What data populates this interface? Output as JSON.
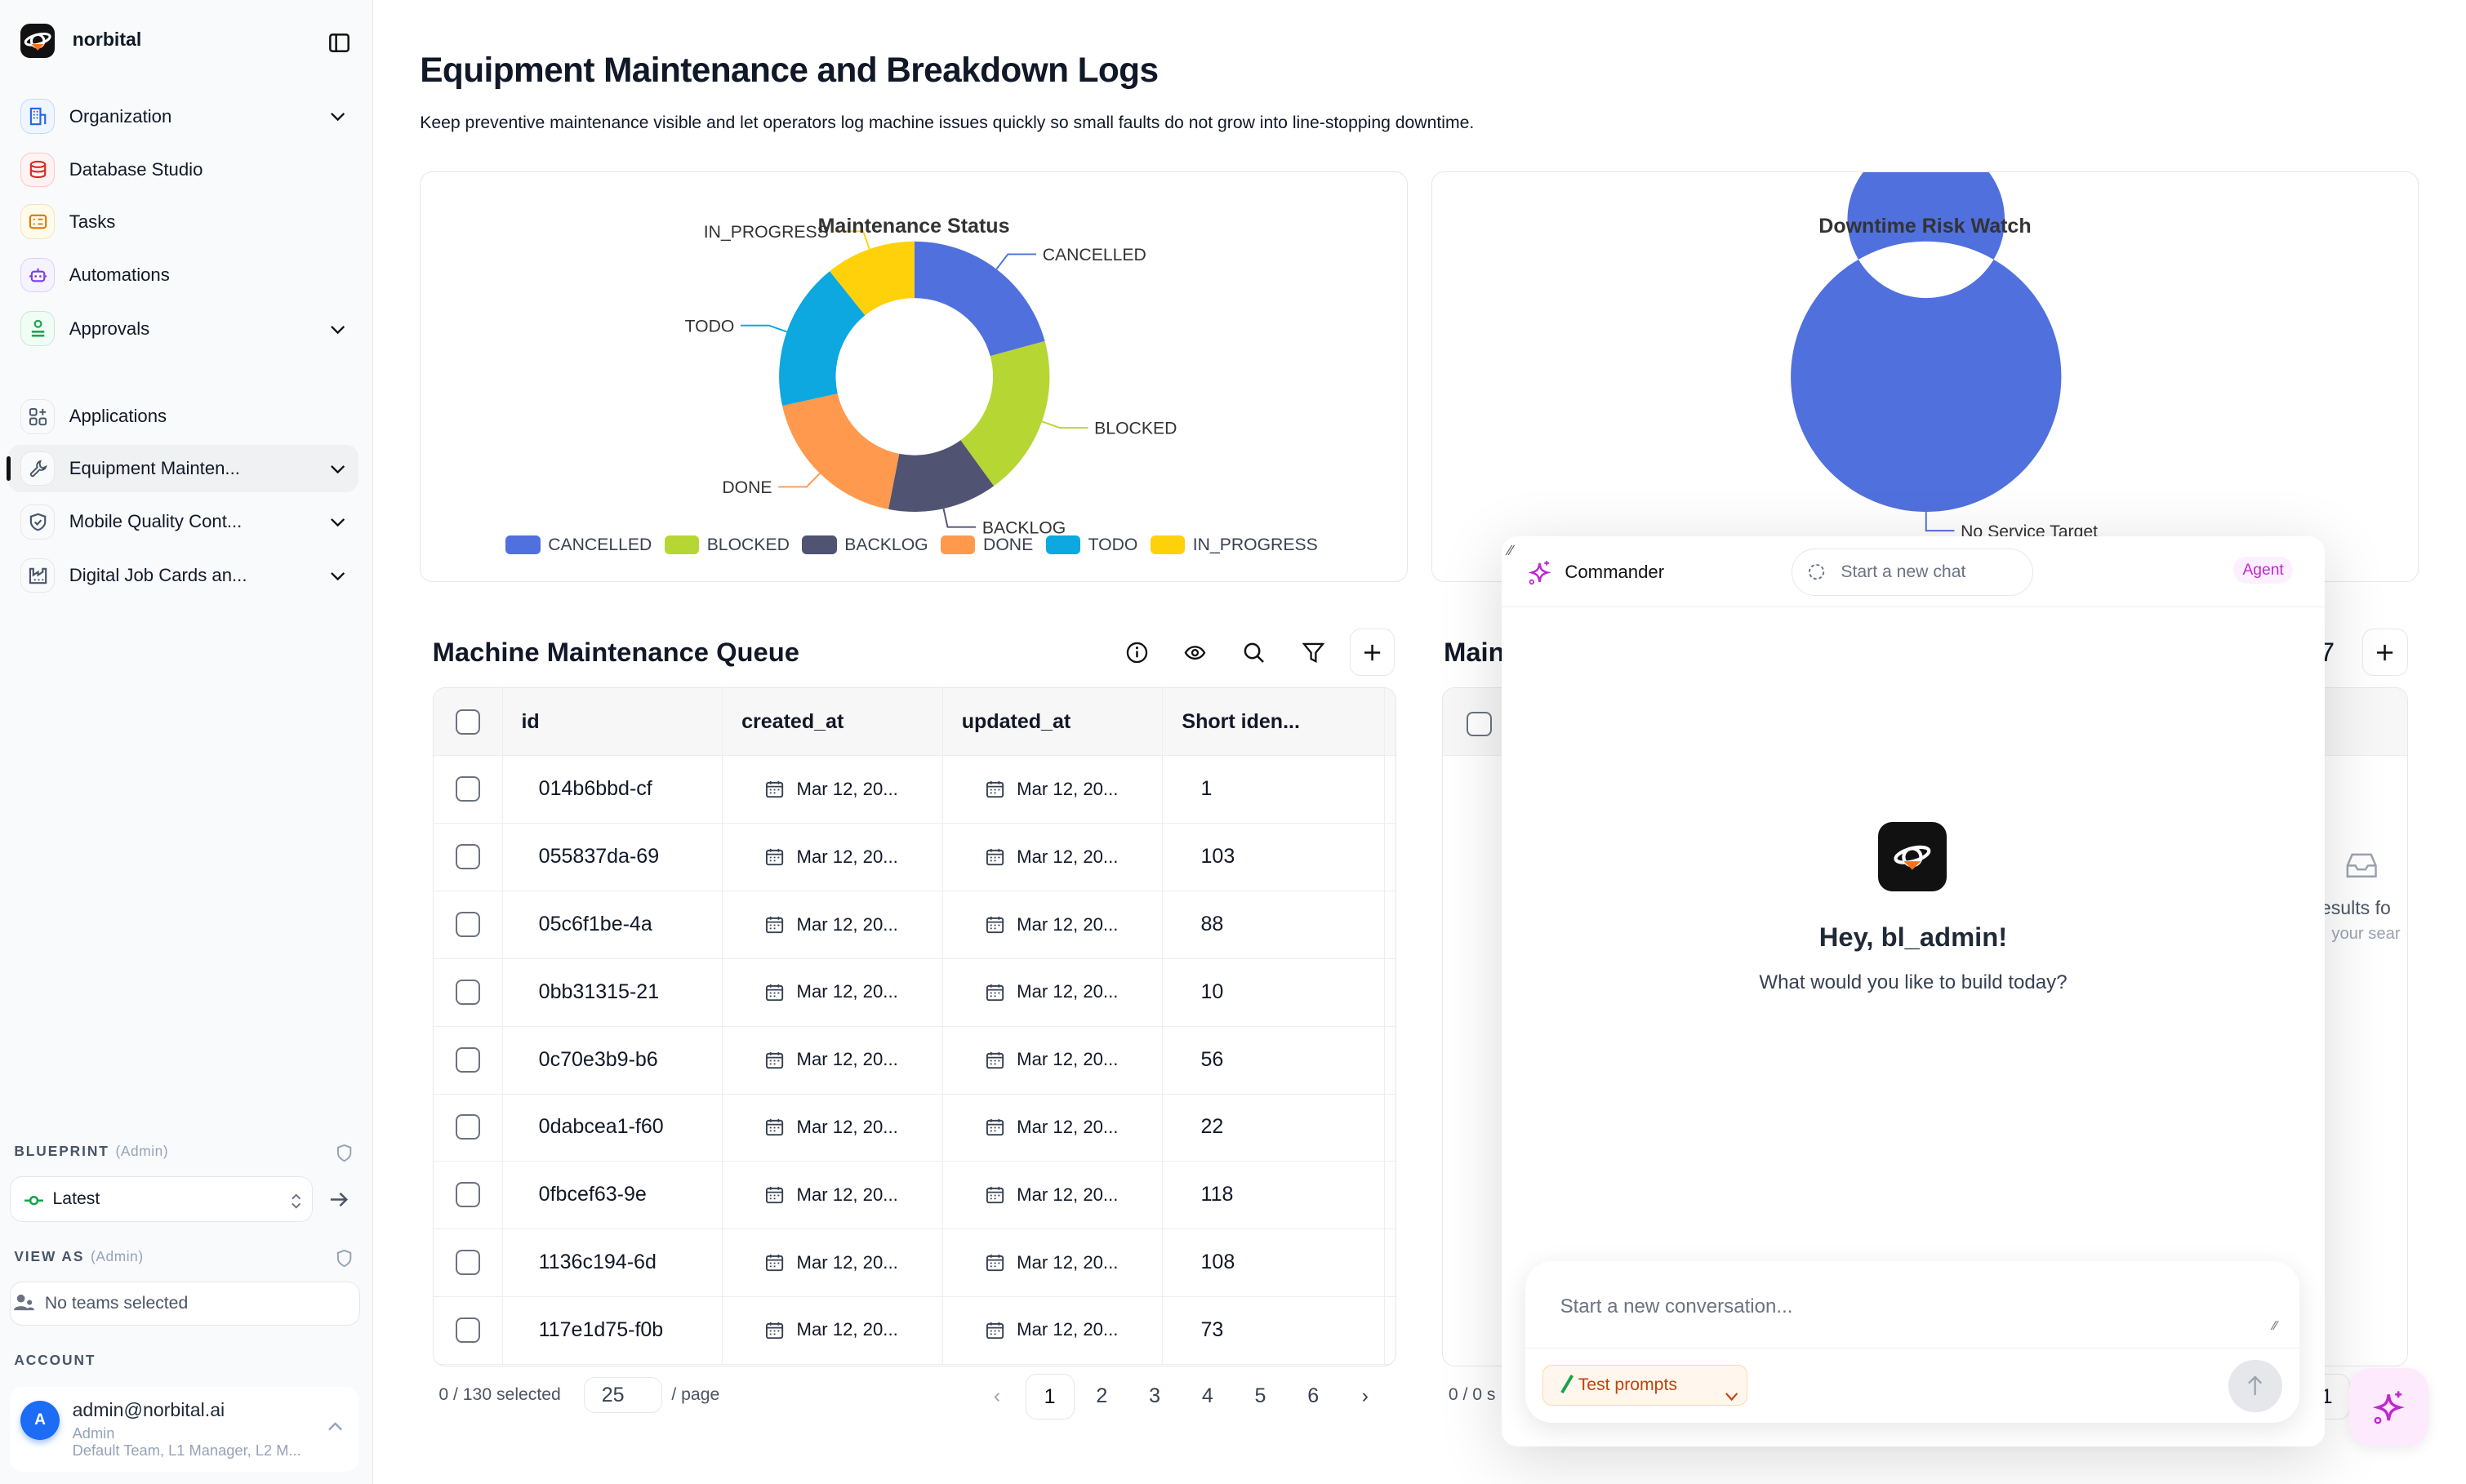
{
  "app": {
    "name": "norbital"
  },
  "sidebar": {
    "primary": [
      {
        "label": "Organization",
        "icon": "building-icon",
        "color": "#2563eb",
        "bg": "#eff6ff",
        "chev": true
      },
      {
        "label": "Database Studio",
        "icon": "database-icon",
        "color": "#dc2626",
        "bg": "#fef2f2",
        "chev": false
      },
      {
        "label": "Tasks",
        "icon": "tasks-icon",
        "color": "#d97706",
        "bg": "#fffbeb",
        "chev": false
      },
      {
        "label": "Automations",
        "icon": "bot-icon",
        "color": "#7c3aed",
        "bg": "#f5f3ff",
        "chev": false
      },
      {
        "label": "Approvals",
        "icon": "stamp-icon",
        "color": "#16a34a",
        "bg": "#f0fdf4",
        "chev": true
      }
    ],
    "apps": [
      {
        "label": "Applications",
        "icon": "apps-icon",
        "chev": false,
        "active": false
      },
      {
        "label": "Equipment Mainten...",
        "icon": "wrench-icon",
        "chev": true,
        "active": true
      },
      {
        "label": "Mobile Quality Cont...",
        "icon": "shield-check-icon",
        "chev": true,
        "active": false
      },
      {
        "label": "Digital Job Cards an...",
        "icon": "factory-icon",
        "chev": true,
        "active": false
      }
    ],
    "blueprint": {
      "label": "BLUEPRINT",
      "tag": "(Admin)",
      "value": "Latest"
    },
    "view_as": {
      "label": "VIEW AS",
      "tag": "(Admin)",
      "value": "No teams selected"
    },
    "account": {
      "label": "ACCOUNT",
      "avatar": "A",
      "email": "admin@norbital.ai",
      "role": "Admin",
      "teams": "Default Team, L1 Manager, L2 M..."
    }
  },
  "page": {
    "title": "Equipment Maintenance and Breakdown Logs",
    "subtitle": "Keep preventive maintenance visible and let operators log machine issues quickly so small faults do not grow into line-stopping downtime."
  },
  "chart_data": [
    {
      "type": "pie",
      "title": "Maintenance Status",
      "donut": true,
      "categories": [
        "CANCELLED",
        "BLOCKED",
        "BACKLOG",
        "DONE",
        "TODO",
        "IN_PROGRESS"
      ],
      "values": [
        27,
        25,
        17,
        24,
        23,
        14
      ],
      "colors": [
        "#5070dd",
        "#b6d634",
        "#505372",
        "#ff994d",
        "#0ca8df",
        "#ffd10a"
      ],
      "legend": "bottom"
    },
    {
      "type": "pie",
      "title": "Downtime Risk Watch",
      "donut": true,
      "categories": [
        "No Service Target"
      ],
      "values": [
        1
      ],
      "colors": [
        "#5070dd"
      ],
      "legend": "bottom"
    }
  ],
  "queue": {
    "title": "Machine Maintenance Queue",
    "columns": [
      "id",
      "created_at",
      "updated_at",
      "Short iden..."
    ],
    "rows": [
      {
        "id": "014b6bbd-cf",
        "created": "Mar 12, 20...",
        "updated": "Mar 12, 20...",
        "short": "1"
      },
      {
        "id": "055837da-69",
        "created": "Mar 12, 20...",
        "updated": "Mar 12, 20...",
        "short": "103"
      },
      {
        "id": "05c6f1be-4a",
        "created": "Mar 12, 20...",
        "updated": "Mar 12, 20...",
        "short": "88"
      },
      {
        "id": "0bb31315-21",
        "created": "Mar 12, 20...",
        "updated": "Mar 12, 20...",
        "short": "10"
      },
      {
        "id": "0c70e3b9-b6",
        "created": "Mar 12, 20...",
        "updated": "Mar 12, 20...",
        "short": "56"
      },
      {
        "id": "0dabcea1-f60",
        "created": "Mar 12, 20...",
        "updated": "Mar 12, 20...",
        "short": "22"
      },
      {
        "id": "0fbcef63-9e",
        "created": "Mar 12, 20...",
        "updated": "Mar 12, 20...",
        "short": "118"
      },
      {
        "id": "1136c194-6d",
        "created": "Mar 12, 20...",
        "updated": "Mar 12, 20...",
        "short": "108"
      },
      {
        "id": "117e1d75-f0b",
        "created": "Mar 12, 20...",
        "updated": "Mar 12, 20...",
        "short": "73"
      }
    ],
    "selected": "0 / 130 selected",
    "page_size": "25",
    "per_page": "/ page",
    "pages": [
      "1",
      "2",
      "3",
      "4",
      "5",
      "6"
    ],
    "current_page": "1"
  },
  "second_table": {
    "title": "Main",
    "empty_line1": "esults fo",
    "empty_line2": "your sear",
    "selected": "0 / 0 s",
    "page": "1",
    "partial": "7"
  },
  "commander": {
    "title": "Commander",
    "new_chat": "Start a new chat",
    "mode": "Agent",
    "greeting": "Hey, bl_admin!",
    "prompt": "What would you like to build today?",
    "input_placeholder": "Start a new conversation...",
    "test_prompts": "Test prompts"
  }
}
